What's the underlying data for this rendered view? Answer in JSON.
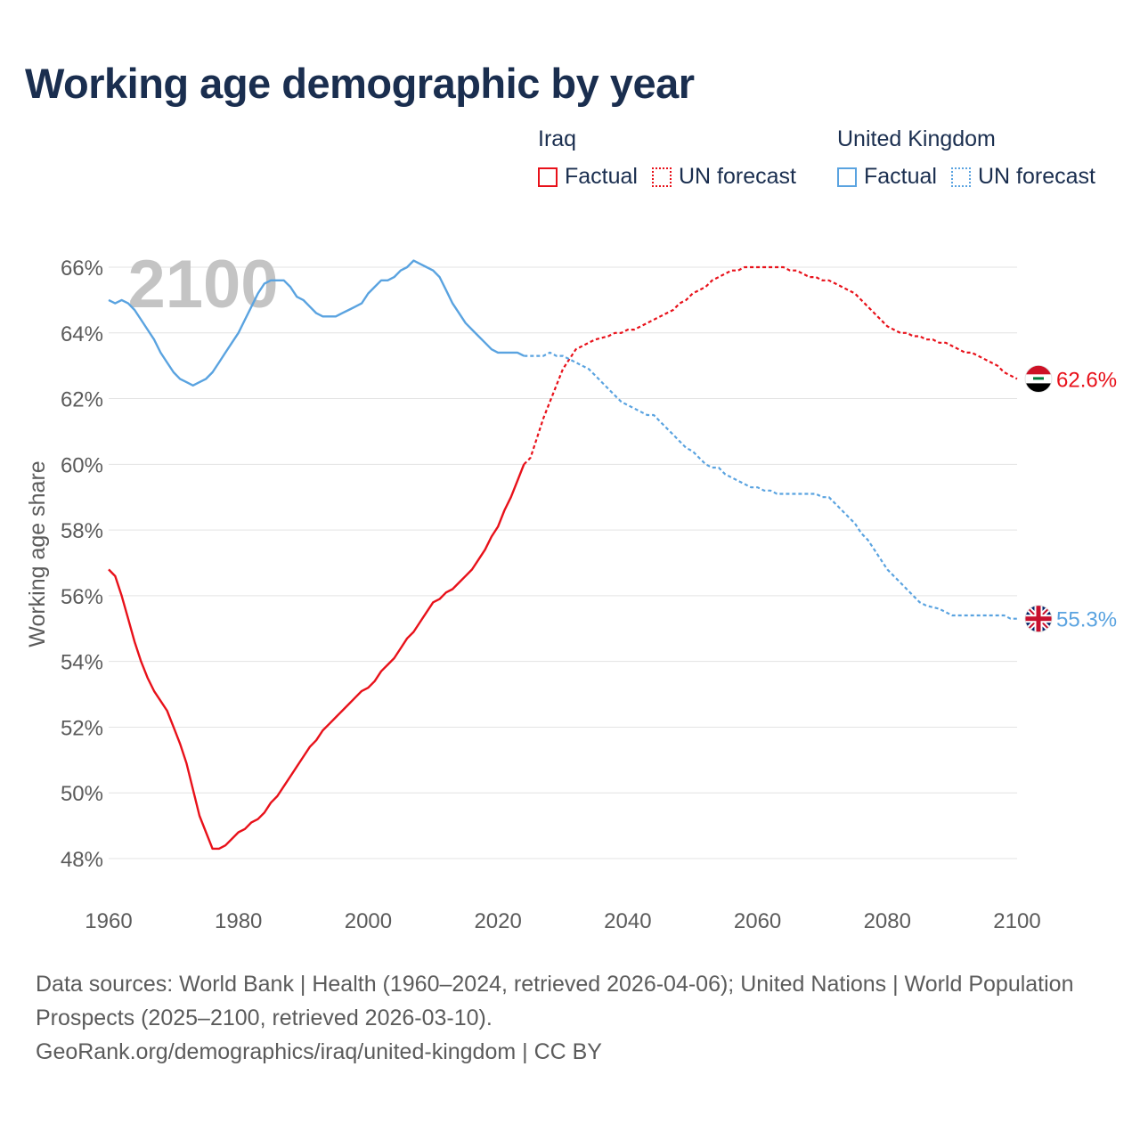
{
  "title": "Working age demographic by year",
  "year_watermark": "2100",
  "legend": {
    "groups": [
      {
        "name": "Iraq",
        "factual_label": "Factual",
        "forecast_label": "UN forecast",
        "color": "#e8111a"
      },
      {
        "name": "United Kingdom",
        "factual_label": "Factual",
        "forecast_label": "UN forecast",
        "color": "#5aa3e0"
      }
    ]
  },
  "footer": {
    "sources": "Data sources: World Bank | Health (1960–2024, retrieved 2026-04-06); United Nations | World Population Prospects (2025–2100, retrieved 2026-03-10).",
    "credit": "GeoRank.org/demographics/iraq/united-kingdom | CC BY"
  },
  "chart_data": {
    "type": "line",
    "title": "Working age demographic by year",
    "xlabel": "",
    "ylabel": "Working age share",
    "xlim": [
      1960,
      2100
    ],
    "ylim": [
      47,
      67
    ],
    "x_ticks": [
      "1960",
      "1980",
      "2000",
      "2020",
      "2040",
      "2060",
      "2080",
      "2100"
    ],
    "y_ticks": [
      "48%",
      "50%",
      "52%",
      "54%",
      "56%",
      "58%",
      "60%",
      "62%",
      "64%",
      "66%"
    ],
    "y_tick_values": [
      48,
      50,
      52,
      54,
      56,
      58,
      60,
      62,
      64,
      66
    ],
    "x_tick_values": [
      1960,
      1980,
      2000,
      2020,
      2040,
      2060,
      2080,
      2100
    ],
    "factual_range": [
      1960,
      2024
    ],
    "forecast_range": [
      2025,
      2100
    ],
    "end_labels": [
      {
        "series": "Iraq",
        "text": "62.6%",
        "flag": "iraq-flag",
        "color": "#e8111a",
        "value": 62.6
      },
      {
        "series": "United Kingdom",
        "text": "55.3%",
        "flag": "uk-flag",
        "color": "#5aa3e0",
        "value": 55.3
      }
    ],
    "series": [
      {
        "name": "Iraq",
        "color": "#e8111a",
        "factual": [
          [
            1960,
            56.8
          ],
          [
            1961,
            56.6
          ],
          [
            1962,
            56.0
          ],
          [
            1963,
            55.3
          ],
          [
            1964,
            54.6
          ],
          [
            1965,
            54.0
          ],
          [
            1966,
            53.5
          ],
          [
            1967,
            53.1
          ],
          [
            1968,
            52.8
          ],
          [
            1969,
            52.5
          ],
          [
            1970,
            52.0
          ],
          [
            1971,
            51.5
          ],
          [
            1972,
            50.9
          ],
          [
            1973,
            50.1
          ],
          [
            1974,
            49.3
          ],
          [
            1975,
            48.8
          ],
          [
            1976,
            48.3
          ],
          [
            1977,
            48.3
          ],
          [
            1978,
            48.4
          ],
          [
            1979,
            48.6
          ],
          [
            1980,
            48.8
          ],
          [
            1981,
            48.9
          ],
          [
            1982,
            49.1
          ],
          [
            1983,
            49.2
          ],
          [
            1984,
            49.4
          ],
          [
            1985,
            49.7
          ],
          [
            1986,
            49.9
          ],
          [
            1987,
            50.2
          ],
          [
            1988,
            50.5
          ],
          [
            1989,
            50.8
          ],
          [
            1990,
            51.1
          ],
          [
            1991,
            51.4
          ],
          [
            1992,
            51.6
          ],
          [
            1993,
            51.9
          ],
          [
            1994,
            52.1
          ],
          [
            1995,
            52.3
          ],
          [
            1996,
            52.5
          ],
          [
            1997,
            52.7
          ],
          [
            1998,
            52.9
          ],
          [
            1999,
            53.1
          ],
          [
            2000,
            53.2
          ],
          [
            2001,
            53.4
          ],
          [
            2002,
            53.7
          ],
          [
            2003,
            53.9
          ],
          [
            2004,
            54.1
          ],
          [
            2005,
            54.4
          ],
          [
            2006,
            54.7
          ],
          [
            2007,
            54.9
          ],
          [
            2008,
            55.2
          ],
          [
            2009,
            55.5
          ],
          [
            2010,
            55.8
          ],
          [
            2011,
            55.9
          ],
          [
            2012,
            56.1
          ],
          [
            2013,
            56.2
          ],
          [
            2014,
            56.4
          ],
          [
            2015,
            56.6
          ],
          [
            2016,
            56.8
          ],
          [
            2017,
            57.1
          ],
          [
            2018,
            57.4
          ],
          [
            2019,
            57.8
          ],
          [
            2020,
            58.1
          ],
          [
            2021,
            58.6
          ],
          [
            2022,
            59.0
          ],
          [
            2023,
            59.5
          ],
          [
            2024,
            60.0
          ]
        ],
        "forecast": [
          [
            2024,
            60.0
          ],
          [
            2025,
            60.2
          ],
          [
            2026,
            60.8
          ],
          [
            2027,
            61.4
          ],
          [
            2028,
            61.9
          ],
          [
            2029,
            62.4
          ],
          [
            2030,
            62.9
          ],
          [
            2031,
            63.2
          ],
          [
            2032,
            63.5
          ],
          [
            2033,
            63.6
          ],
          [
            2034,
            63.7
          ],
          [
            2035,
            63.8
          ],
          [
            2036,
            63.85
          ],
          [
            2037,
            63.9
          ],
          [
            2038,
            64.0
          ],
          [
            2039,
            64.0
          ],
          [
            2040,
            64.1
          ],
          [
            2041,
            64.1
          ],
          [
            2042,
            64.2
          ],
          [
            2043,
            64.3
          ],
          [
            2044,
            64.4
          ],
          [
            2045,
            64.5
          ],
          [
            2046,
            64.6
          ],
          [
            2047,
            64.7
          ],
          [
            2048,
            64.9
          ],
          [
            2049,
            65.0
          ],
          [
            2050,
            65.2
          ],
          [
            2051,
            65.3
          ],
          [
            2052,
            65.4
          ],
          [
            2053,
            65.6
          ],
          [
            2054,
            65.7
          ],
          [
            2055,
            65.8
          ],
          [
            2056,
            65.9
          ],
          [
            2057,
            65.9
          ],
          [
            2058,
            66.0
          ],
          [
            2059,
            66.0
          ],
          [
            2060,
            66.0
          ],
          [
            2061,
            66.0
          ],
          [
            2062,
            66.0
          ],
          [
            2063,
            66.0
          ],
          [
            2064,
            66.0
          ],
          [
            2065,
            65.9
          ],
          [
            2066,
            65.9
          ],
          [
            2067,
            65.8
          ],
          [
            2068,
            65.7
          ],
          [
            2069,
            65.7
          ],
          [
            2070,
            65.6
          ],
          [
            2071,
            65.6
          ],
          [
            2072,
            65.5
          ],
          [
            2073,
            65.4
          ],
          [
            2074,
            65.3
          ],
          [
            2075,
            65.2
          ],
          [
            2076,
            65.0
          ],
          [
            2077,
            64.8
          ],
          [
            2078,
            64.6
          ],
          [
            2079,
            64.4
          ],
          [
            2080,
            64.2
          ],
          [
            2081,
            64.1
          ],
          [
            2082,
            64.0
          ],
          [
            2083,
            64.0
          ],
          [
            2084,
            63.9
          ],
          [
            2085,
            63.9
          ],
          [
            2086,
            63.8
          ],
          [
            2087,
            63.8
          ],
          [
            2088,
            63.7
          ],
          [
            2089,
            63.7
          ],
          [
            2090,
            63.6
          ],
          [
            2091,
            63.5
          ],
          [
            2092,
            63.4
          ],
          [
            2093,
            63.4
          ],
          [
            2094,
            63.3
          ],
          [
            2095,
            63.2
          ],
          [
            2096,
            63.1
          ],
          [
            2097,
            63.0
          ],
          [
            2098,
            62.8
          ],
          [
            2099,
            62.7
          ],
          [
            2100,
            62.6
          ]
        ]
      },
      {
        "name": "United Kingdom",
        "color": "#5aa3e0",
        "factual": [
          [
            1960,
            65.0
          ],
          [
            1961,
            64.9
          ],
          [
            1962,
            65.0
          ],
          [
            1963,
            64.9
          ],
          [
            1964,
            64.7
          ],
          [
            1965,
            64.4
          ],
          [
            1966,
            64.1
          ],
          [
            1967,
            63.8
          ],
          [
            1968,
            63.4
          ],
          [
            1969,
            63.1
          ],
          [
            1970,
            62.8
          ],
          [
            1971,
            62.6
          ],
          [
            1972,
            62.5
          ],
          [
            1973,
            62.4
          ],
          [
            1974,
            62.5
          ],
          [
            1975,
            62.6
          ],
          [
            1976,
            62.8
          ],
          [
            1977,
            63.1
          ],
          [
            1978,
            63.4
          ],
          [
            1979,
            63.7
          ],
          [
            1980,
            64.0
          ],
          [
            1981,
            64.4
          ],
          [
            1982,
            64.8
          ],
          [
            1983,
            65.2
          ],
          [
            1984,
            65.5
          ],
          [
            1985,
            65.6
          ],
          [
            1986,
            65.6
          ],
          [
            1987,
            65.6
          ],
          [
            1988,
            65.4
          ],
          [
            1989,
            65.1
          ],
          [
            1990,
            65.0
          ],
          [
            1991,
            64.8
          ],
          [
            1992,
            64.6
          ],
          [
            1993,
            64.5
          ],
          [
            1994,
            64.5
          ],
          [
            1995,
            64.5
          ],
          [
            1996,
            64.6
          ],
          [
            1997,
            64.7
          ],
          [
            1998,
            64.8
          ],
          [
            1999,
            64.9
          ],
          [
            2000,
            65.2
          ],
          [
            2001,
            65.4
          ],
          [
            2002,
            65.6
          ],
          [
            2003,
            65.6
          ],
          [
            2004,
            65.7
          ],
          [
            2005,
            65.9
          ],
          [
            2006,
            66.0
          ],
          [
            2007,
            66.2
          ],
          [
            2008,
            66.1
          ],
          [
            2009,
            66.0
          ],
          [
            2010,
            65.9
          ],
          [
            2011,
            65.7
          ],
          [
            2012,
            65.3
          ],
          [
            2013,
            64.9
          ],
          [
            2014,
            64.6
          ],
          [
            2015,
            64.3
          ],
          [
            2016,
            64.1
          ],
          [
            2017,
            63.9
          ],
          [
            2018,
            63.7
          ],
          [
            2019,
            63.5
          ],
          [
            2020,
            63.4
          ],
          [
            2021,
            63.4
          ],
          [
            2022,
            63.4
          ],
          [
            2023,
            63.4
          ],
          [
            2024,
            63.3
          ]
        ],
        "forecast": [
          [
            2024,
            63.3
          ],
          [
            2025,
            63.3
          ],
          [
            2026,
            63.3
          ],
          [
            2027,
            63.3
          ],
          [
            2028,
            63.4
          ],
          [
            2029,
            63.3
          ],
          [
            2030,
            63.3
          ],
          [
            2031,
            63.2
          ],
          [
            2032,
            63.1
          ],
          [
            2033,
            63.0
          ],
          [
            2034,
            62.9
          ],
          [
            2035,
            62.7
          ],
          [
            2036,
            62.5
          ],
          [
            2037,
            62.3
          ],
          [
            2038,
            62.1
          ],
          [
            2039,
            61.9
          ],
          [
            2040,
            61.8
          ],
          [
            2041,
            61.7
          ],
          [
            2042,
            61.6
          ],
          [
            2043,
            61.5
          ],
          [
            2044,
            61.5
          ],
          [
            2045,
            61.3
          ],
          [
            2046,
            61.1
          ],
          [
            2047,
            60.9
          ],
          [
            2048,
            60.7
          ],
          [
            2049,
            60.5
          ],
          [
            2050,
            60.4
          ],
          [
            2051,
            60.2
          ],
          [
            2052,
            60.0
          ],
          [
            2053,
            59.9
          ],
          [
            2054,
            59.9
          ],
          [
            2055,
            59.7
          ],
          [
            2056,
            59.6
          ],
          [
            2057,
            59.5
          ],
          [
            2058,
            59.4
          ],
          [
            2059,
            59.3
          ],
          [
            2060,
            59.3
          ],
          [
            2061,
            59.2
          ],
          [
            2062,
            59.2
          ],
          [
            2063,
            59.1
          ],
          [
            2064,
            59.1
          ],
          [
            2065,
            59.1
          ],
          [
            2066,
            59.1
          ],
          [
            2067,
            59.1
          ],
          [
            2068,
            59.1
          ],
          [
            2069,
            59.1
          ],
          [
            2070,
            59.0
          ],
          [
            2071,
            59.0
          ],
          [
            2072,
            58.8
          ],
          [
            2073,
            58.6
          ],
          [
            2074,
            58.4
          ],
          [
            2075,
            58.2
          ],
          [
            2076,
            57.9
          ],
          [
            2077,
            57.7
          ],
          [
            2078,
            57.4
          ],
          [
            2079,
            57.1
          ],
          [
            2080,
            56.8
          ],
          [
            2081,
            56.6
          ],
          [
            2082,
            56.4
          ],
          [
            2083,
            56.2
          ],
          [
            2084,
            56.0
          ],
          [
            2085,
            55.8
          ],
          [
            2086,
            55.7
          ],
          [
            2087,
            55.65
          ],
          [
            2088,
            55.6
          ],
          [
            2089,
            55.5
          ],
          [
            2090,
            55.4
          ],
          [
            2091,
            55.4
          ],
          [
            2092,
            55.4
          ],
          [
            2093,
            55.4
          ],
          [
            2094,
            55.4
          ],
          [
            2095,
            55.4
          ],
          [
            2096,
            55.4
          ],
          [
            2097,
            55.4
          ],
          [
            2098,
            55.4
          ],
          [
            2099,
            55.3
          ],
          [
            2100,
            55.3
          ]
        ]
      }
    ]
  }
}
